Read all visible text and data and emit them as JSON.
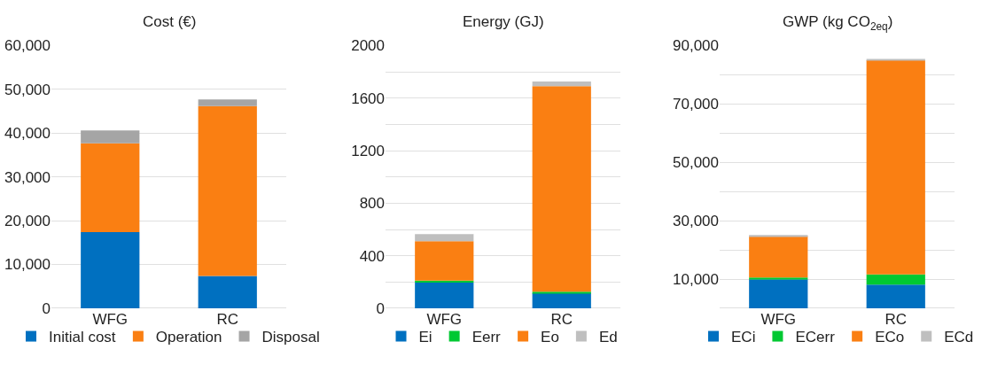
{
  "chart_data": [
    {
      "type": "bar",
      "title": "Cost (€)",
      "categories": [
        "WFG",
        "RC"
      ],
      "stacked": true,
      "grid": "y",
      "legend": "bottom",
      "ylim": [
        0,
        60000
      ],
      "yticks": [
        0,
        {
          "value": 10000,
          "label": "10,000"
        },
        {
          "value": 20000,
          "label": "20,000"
        },
        {
          "value": 30000,
          "label": "30,000"
        },
        {
          "value": 40000,
          "label": "40,000"
        },
        {
          "value": 50000,
          "label": "50,000"
        },
        {
          "value": 60000,
          "label": "60,000"
        }
      ],
      "series": [
        {
          "name": "Initial cost",
          "color": "#0070c0",
          "values": [
            17400,
            7400
          ]
        },
        {
          "name": "Operation",
          "color": "#fa7f12",
          "values": [
            20300,
            38800
          ]
        },
        {
          "name": "Disposal",
          "color": "#a5a5a5",
          "values": [
            2900,
            1500
          ]
        }
      ]
    },
    {
      "type": "bar",
      "title": "Energy (GJ)",
      "categories": [
        "WFG",
        "RC"
      ],
      "stacked": true,
      "grid": "y",
      "legend": "bottom",
      "ylim": [
        0,
        2000
      ],
      "yticks": [
        0,
        {
          "value": 200,
          "label": null
        },
        400,
        {
          "value": 600,
          "label": null
        },
        800,
        {
          "value": 1000,
          "label": null
        },
        1200,
        {
          "value": 1400,
          "label": null
        },
        1600,
        {
          "value": 1800,
          "label": null
        },
        2000
      ],
      "series": [
        {
          "name": "Ei",
          "color": "#0070c0",
          "values": [
            195,
            115
          ]
        },
        {
          "name": "Eerr",
          "color": "#00c832",
          "values": [
            15,
            12
          ]
        },
        {
          "name": "Eo",
          "color": "#fa7f12",
          "values": [
            300,
            1565
          ]
        },
        {
          "name": "Ed",
          "color": "#bfbfbf",
          "values": [
            55,
            35
          ]
        }
      ]
    },
    {
      "type": "bar",
      "title": "GWP (kg CO$_{2eq}$)",
      "categories": [
        "WFG",
        "RC"
      ],
      "stacked": true,
      "grid": "y",
      "legend": "bottom",
      "ylim": [
        0,
        90000
      ],
      "yticks": [
        {
          "value": 0,
          "label": null
        },
        {
          "value": 10000,
          "label": "10,000"
        },
        {
          "value": 20000,
          "label": null
        },
        {
          "value": 30000,
          "label": "30,000"
        },
        {
          "value": 40000,
          "label": null
        },
        {
          "value": 50000,
          "label": "50,000"
        },
        {
          "value": 60000,
          "label": null
        },
        {
          "value": 70000,
          "label": "70,000"
        },
        {
          "value": 80000,
          "label": null
        },
        {
          "value": 90000,
          "label": "90,000"
        }
      ],
      "series": [
        {
          "name": "ECi",
          "color": "#0070c0",
          "values": [
            9900,
            8100
          ]
        },
        {
          "name": "ECerr",
          "color": "#00c832",
          "values": [
            600,
            3500
          ]
        },
        {
          "name": "ECo",
          "color": "#fa7f12",
          "values": [
            14200,
            73400
          ]
        },
        {
          "name": "ECd",
          "color": "#bfbfbf",
          "values": [
            400,
            400
          ]
        }
      ]
    }
  ]
}
